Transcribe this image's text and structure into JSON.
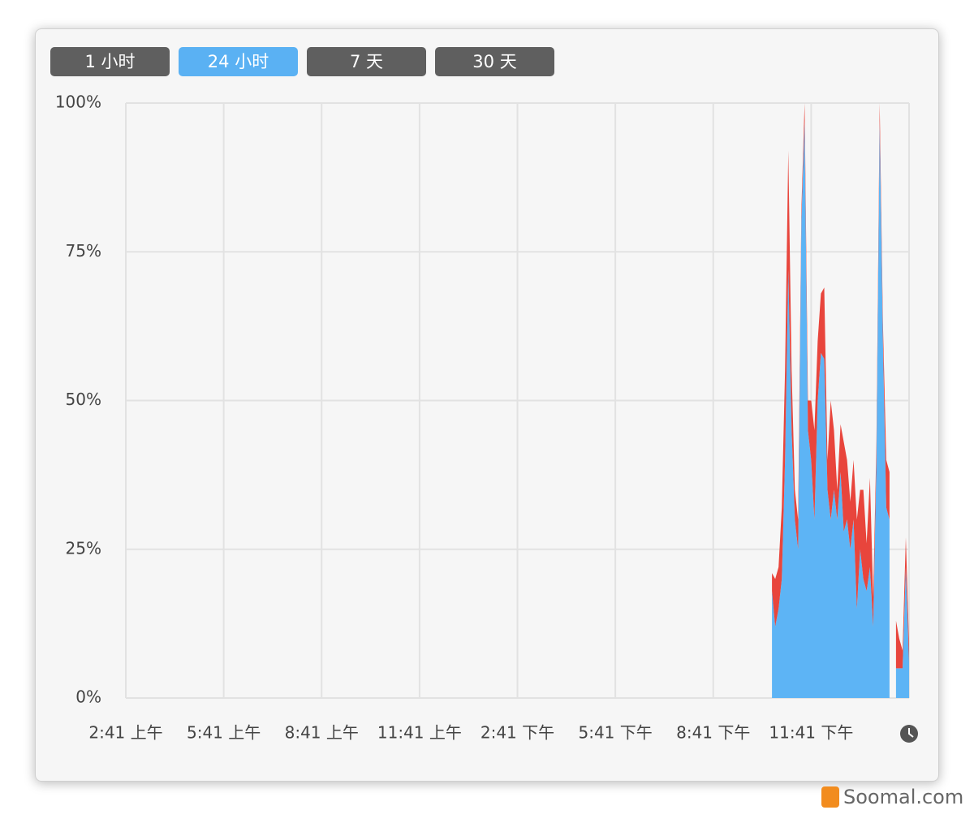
{
  "buttons": [
    "1 小时",
    "24 小时",
    "7 天",
    "30 天"
  ],
  "active_button": 1,
  "watermark": "Soomal.com",
  "chart_data": {
    "type": "stacked-area",
    "x": [
      19.8,
      19.9,
      20.0,
      20.1,
      20.2,
      20.3,
      20.4,
      20.5,
      20.6,
      20.7,
      20.8,
      20.9,
      21.0,
      21.1,
      21.2,
      21.3,
      21.4,
      21.5,
      21.6,
      21.7,
      21.8,
      21.9,
      22.0,
      22.1,
      22.2,
      22.3,
      22.4,
      22.5,
      22.6,
      22.7,
      22.8,
      22.9,
      23.0,
      23.1,
      23.2,
      23.3,
      23.4,
      23.5,
      23.6,
      23.7,
      23.8,
      23.9,
      24.0
    ],
    "series": [
      {
        "color": "#5db4f5",
        "values": [
          18,
          12,
          15,
          20,
          40,
          72,
          45,
          30,
          25,
          80,
          97,
          45,
          40,
          30,
          50,
          58,
          57,
          35,
          30,
          35,
          30,
          38,
          28,
          30,
          25,
          30,
          15,
          25,
          20,
          18,
          22,
          12,
          40,
          97,
          60,
          32,
          30,
          null,
          5,
          5,
          5,
          22,
          6
        ]
      },
      {
        "color": "#e8453c",
        "values": [
          3,
          8,
          7,
          12,
          15,
          20,
          10,
          5,
          5,
          2,
          3,
          5,
          10,
          15,
          10,
          10,
          12,
          5,
          20,
          10,
          5,
          8,
          15,
          10,
          8,
          10,
          15,
          10,
          15,
          8,
          15,
          5,
          3,
          3,
          3,
          8,
          8,
          null,
          8,
          5,
          3,
          5,
          3
        ]
      }
    ],
    "xlim": [
      0,
      24
    ],
    "xticks": [
      {
        "value": 0,
        "label": "2:41 上午"
      },
      {
        "value": 3,
        "label": "5:41 上午"
      },
      {
        "value": 6,
        "label": "8:41 上午"
      },
      {
        "value": 9,
        "label": "11:41 上午"
      },
      {
        "value": 12,
        "label": "2:41 下午"
      },
      {
        "value": 15,
        "label": "5:41 下午"
      },
      {
        "value": 18,
        "label": "8:41 下午"
      },
      {
        "value": 21,
        "label": "11:41 下午"
      }
    ],
    "ylim": [
      0,
      100
    ],
    "yticks": [
      {
        "value": 0,
        "label": "0%"
      },
      {
        "value": 25,
        "label": "25%"
      },
      {
        "value": 50,
        "label": "50%"
      },
      {
        "value": 75,
        "label": "75%"
      },
      {
        "value": 100,
        "label": "100%"
      }
    ],
    "grid": true
  }
}
